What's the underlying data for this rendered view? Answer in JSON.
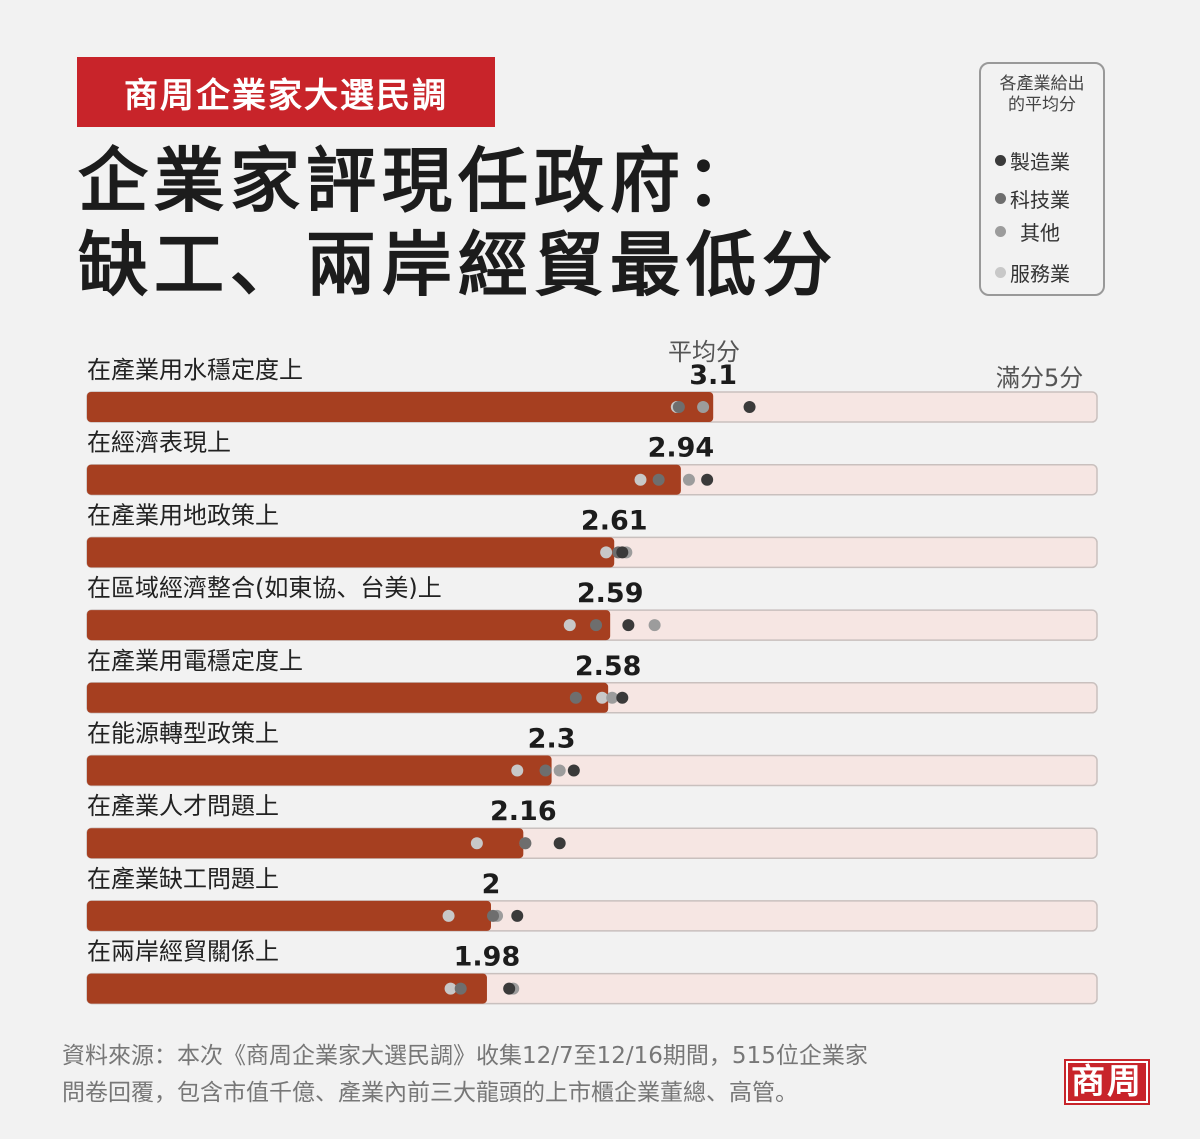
{
  "header": {
    "badge": "商周企業家大選民調",
    "title_line1": "企業家評現任政府：",
    "title_line2": "缺工、兩岸經貿最低分"
  },
  "legend": {
    "title": "各產業給出的平均分",
    "items": [
      {
        "label": "製造業",
        "color": "#3a3a3a"
      },
      {
        "label": "科技業",
        "color": "#6e6e6e"
      },
      {
        "label": "其他",
        "color": "#9c9c9c"
      },
      {
        "label": "服務業",
        "color": "#c8c8c8"
      }
    ]
  },
  "avg_label": "平均分",
  "full_label": "滿分5分",
  "colors": {
    "bar": "#a63f20",
    "track": "#f6e6e3",
    "track_border": "#c9c0be",
    "brand_red": "#c8242a"
  },
  "chart_data": {
    "type": "bar",
    "orientation": "horizontal",
    "xlim": [
      0,
      5
    ],
    "categories": [
      "在產業用水穩定度上",
      "在經濟表現上",
      "在產業用地政策上",
      "在區域經濟整合(如東協、台美)上",
      "在產業用電穩定度上",
      "在能源轉型政策上",
      "在產業人才問題上",
      "在產業缺工問題上",
      "在兩岸經貿關係上"
    ],
    "value_labels": [
      "3.1",
      "2.94",
      "2.61",
      "2.59",
      "2.58",
      "2.3",
      "2.16",
      "2",
      "1.98"
    ],
    "values": [
      3.1,
      2.94,
      2.61,
      2.59,
      2.58,
      2.3,
      2.16,
      2.0,
      1.98
    ],
    "industry_scores": [
      {
        "name": "製造業",
        "values": [
          3.28,
          3.07,
          2.65,
          2.68,
          2.65,
          2.41,
          2.34,
          2.13,
          2.09
        ]
      },
      {
        "name": "科技業",
        "values": [
          2.93,
          2.83,
          2.63,
          2.52,
          2.42,
          2.27,
          2.17,
          2.01,
          1.85
        ]
      },
      {
        "name": "其他",
        "values": [
          3.05,
          2.98,
          2.67,
          2.81,
          2.6,
          2.34,
          2.17,
          2.03,
          2.11
        ]
      },
      {
        "name": "服務業",
        "values": [
          2.92,
          2.74,
          2.57,
          2.39,
          2.55,
          2.13,
          1.93,
          1.79,
          1.8
        ]
      }
    ]
  },
  "footer": {
    "source_line1": "資料來源：本次《商周企業家大選民調》收集12/7至12/16期間，515位企業家",
    "source_line2": "問卷回覆，包含市值千億、產業內前三大龍頭的上市櫃企業董總、高管。",
    "logo": "商周"
  }
}
